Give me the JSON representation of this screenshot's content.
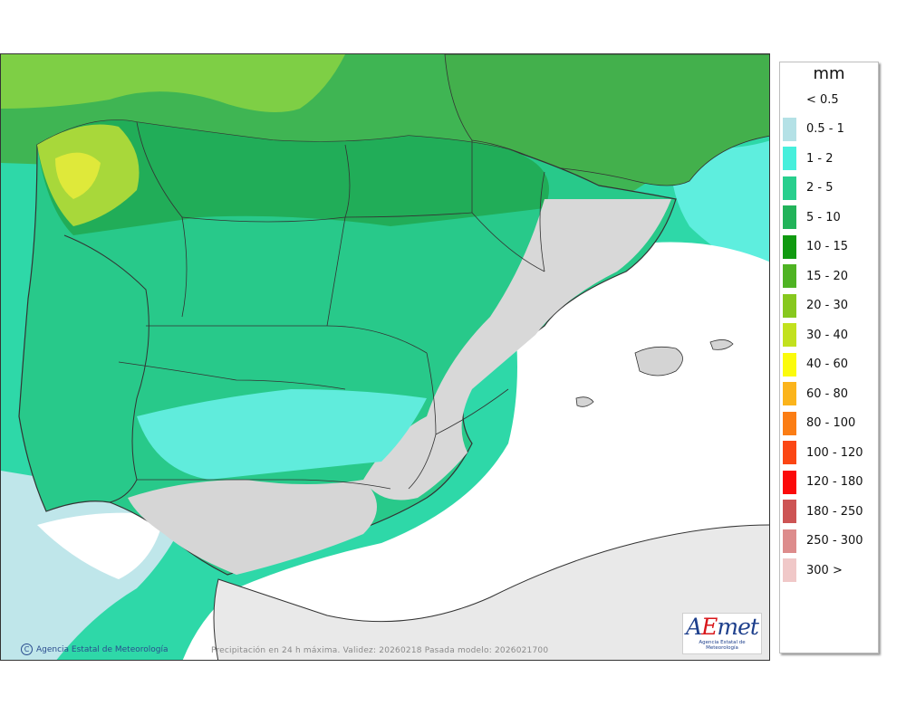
{
  "map": {
    "caption": "Precipitación en 24 h máxima. Validez: 20260218 Pasada modelo: 2026021700",
    "credit": "Agencia Estatal de Meteorología",
    "copyright_symbol": "C",
    "logo": {
      "text_a": "A",
      "text_e": "E",
      "text_rest": "met",
      "subtitle": "Agencia Estatal de Meteorología"
    }
  },
  "legend": {
    "title": "mm",
    "items": [
      {
        "label": "< 0.5",
        "color": ""
      },
      {
        "label": "0.5 - 1",
        "color": "#b4e1e6"
      },
      {
        "label": "1 - 2",
        "color": "#46efdc"
      },
      {
        "label": "2 - 5",
        "color": "#28cf8d"
      },
      {
        "label": "5 - 10",
        "color": "#22b35a"
      },
      {
        "label": "10 - 15",
        "color": "#109a10"
      },
      {
        "label": "15 - 20",
        "color": "#4fb323"
      },
      {
        "label": "20 - 30",
        "color": "#87c81e"
      },
      {
        "label": "30 - 40",
        "color": "#c2e11e"
      },
      {
        "label": "40 - 60",
        "color": "#fbfb0c"
      },
      {
        "label": "60 - 80",
        "color": "#fbb41b"
      },
      {
        "label": "80 - 100",
        "color": "#fb7d14"
      },
      {
        "label": "100 - 120",
        "color": "#fb4614"
      },
      {
        "label": "120 - 180",
        "color": "#fb0a0a"
      },
      {
        "label": "180 - 250",
        "color": "#cd5454"
      },
      {
        "label": "250 - 300",
        "color": "#dd8c8c"
      },
      {
        "label": "300 >",
        "color": "#f0c8c8"
      }
    ]
  },
  "colors": {
    "land_dry": "#dcdcdc",
    "sea_dry": "#ffffff",
    "border": "#333333"
  }
}
